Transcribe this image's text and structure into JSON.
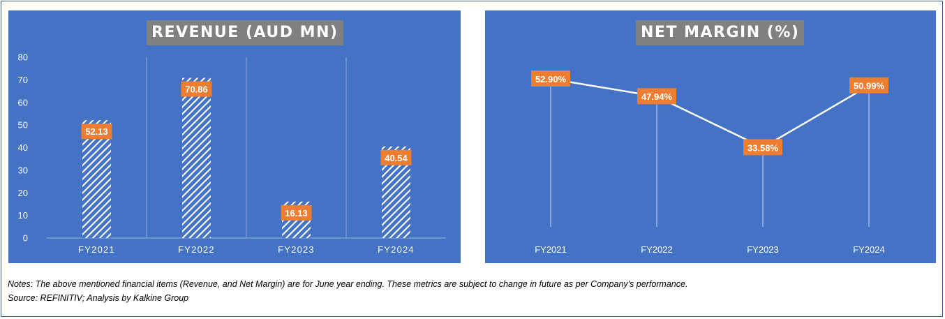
{
  "chart_data": [
    {
      "type": "bar",
      "title": "REVENUE (AUD MN)",
      "categories": [
        "FY2021",
        "FY2022",
        "FY2023",
        "FY2024"
      ],
      "values": [
        52.13,
        70.86,
        16.13,
        40.54
      ],
      "data_labels": [
        "52.13",
        "70.86",
        "16.13",
        "40.54"
      ],
      "y_ticks": [
        "0",
        "10",
        "20",
        "30",
        "40",
        "50",
        "60",
        "70",
        "80"
      ],
      "ylim": [
        0,
        80
      ],
      "grid": "vertical category separators",
      "bar_fill": "diagonal-hatch",
      "legend": "none"
    },
    {
      "type": "line",
      "title": "NET MARGIN (%)",
      "categories": [
        "FY2021",
        "FY2022",
        "FY2023",
        "FY2024"
      ],
      "values": [
        52.9,
        47.94,
        33.58,
        50.99
      ],
      "data_labels": [
        "52.90%",
        "47.94%",
        "33.58%",
        "50.99%"
      ],
      "y_axis_visible": false,
      "drop_lines": true,
      "legend": "none"
    }
  ],
  "colors": {
    "panel_background": "#4472C4",
    "title_background": "#808080",
    "data_label_background": "#ED7D31",
    "bar_hatch": "#FFFFFF",
    "line": "#FFFFFF",
    "frame_border": "#2F5597"
  },
  "notes": {
    "note_text": "Notes: The above mentioned financial items (Revenue, and Net Margin) are for June year ending. These metrics are subject to change in future as per Company's performance.",
    "source_text": "Source: REFINITIV; Analysis by Kalkine Group"
  }
}
